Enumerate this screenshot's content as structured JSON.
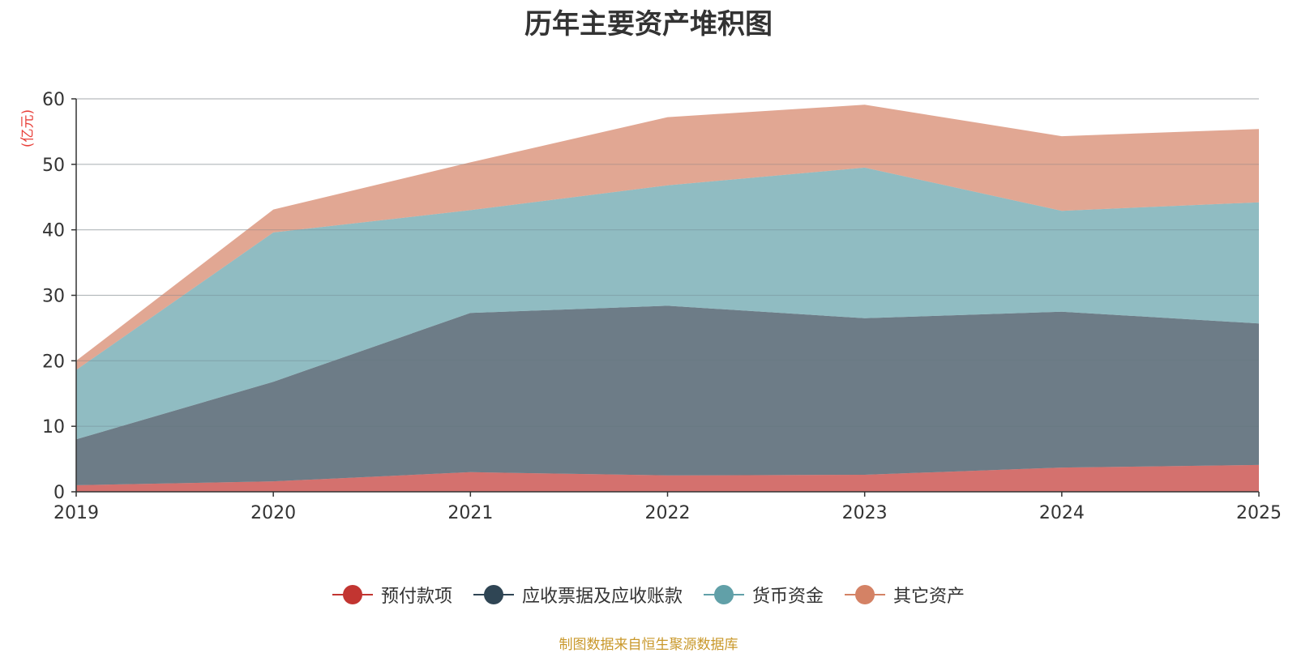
{
  "chart_data": {
    "type": "area",
    "stacked": true,
    "title": "历年主要资产堆积图",
    "ylabel": "(亿元)",
    "xlabel": "",
    "categories": [
      "2019",
      "2020",
      "2021",
      "2022",
      "2023",
      "2024",
      "2025"
    ],
    "ylim": [
      0,
      60
    ],
    "yticks": [
      0,
      10,
      20,
      30,
      40,
      50,
      60
    ],
    "grid": true,
    "legend_position": "bottom",
    "series": [
      {
        "name": "预付款项",
        "color": "#c23531",
        "values": [
          1.0,
          1.6,
          3.0,
          2.5,
          2.6,
          3.7,
          4.1
        ]
      },
      {
        "name": "应收票据及应收账款",
        "color": "#2f4554",
        "values": [
          7.0,
          15.2,
          24.3,
          25.9,
          23.9,
          23.8,
          21.6
        ]
      },
      {
        "name": "货币资金",
        "color": "#61a0a8",
        "values": [
          10.6,
          22.8,
          15.7,
          18.4,
          23.0,
          15.4,
          18.5
        ]
      },
      {
        "name": "其它资产",
        "color": "#d48265",
        "values": [
          1.4,
          3.5,
          7.3,
          10.4,
          9.6,
          11.4,
          11.2
        ]
      }
    ],
    "source": "制图数据来自恒生聚源数据库"
  }
}
